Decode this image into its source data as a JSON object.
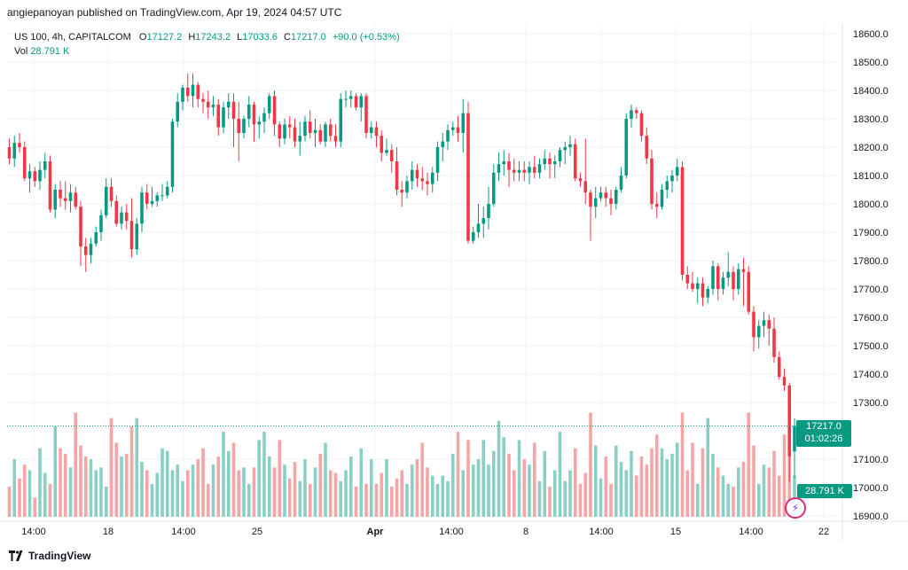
{
  "header": {
    "publisher_line": "angiepanoyan published on TradingView.com, Apr 19, 2024 04:57 UTC"
  },
  "legend": {
    "symbol": "US 100, 4h, CAPITALCOM",
    "o_label": "O",
    "o_value": "17127.2",
    "h_label": "H",
    "h_value": "17243.2",
    "l_label": "L",
    "l_value": "17033.6",
    "c_label": "C",
    "c_value": "17217.0",
    "change": "+90.0 (+0.53%)",
    "vol_label": "Vol",
    "vol_value": "28.791 K"
  },
  "price_tag": {
    "price": "17217.0",
    "countdown": "01:02:26"
  },
  "volume_tag": "28.791 K",
  "footer": {
    "brand": "TradingView"
  },
  "colors": {
    "up": "#089981",
    "down": "#f23645",
    "vol_up": "#89cfc4",
    "vol_down": "#f5a5a5",
    "grid": "#f0f3fa"
  },
  "chart_data": {
    "type": "candlestick",
    "y_ticks": [
      "18600.0",
      "18500.0",
      "18400.0",
      "18300.0",
      "18200.0",
      "18100.0",
      "18000.0",
      "17900.0",
      "17800.0",
      "17700.0",
      "17600.0",
      "17500.0",
      "17400.0",
      "17300.0",
      "17100.0",
      "17000.0",
      "16900.0"
    ],
    "x_ticks": [
      "14:00",
      "18",
      "14:00",
      "25",
      "Apr",
      "14:00",
      "8",
      "14:00",
      "15",
      "14:00",
      "22"
    ],
    "ylim": [
      16900,
      18600
    ],
    "volume_max": 43,
    "candles": [
      [
        18200,
        18230,
        18140,
        18160,
        11
      ],
      [
        18160,
        18240,
        18130,
        18215,
        21
      ],
      [
        18215,
        18250,
        18180,
        18200,
        14
      ],
      [
        18200,
        18220,
        18080,
        18090,
        19
      ],
      [
        18090,
        18140,
        18040,
        18115,
        17
      ],
      [
        18115,
        18130,
        18060,
        18080,
        7
      ],
      [
        18080,
        18150,
        18050,
        18120,
        25
      ],
      [
        18120,
        18180,
        18090,
        18150,
        16
      ],
      [
        18150,
        18170,
        17970,
        17980,
        12
      ],
      [
        17980,
        18070,
        17950,
        18050,
        33
      ],
      [
        18050,
        18080,
        17990,
        18020,
        25
      ],
      [
        18020,
        18080,
        17980,
        18010,
        23
      ],
      [
        18010,
        18070,
        17970,
        18040,
        18
      ],
      [
        18040,
        18060,
        17980,
        17990,
        38
      ],
      [
        17990,
        18010,
        17780,
        17850,
        26
      ],
      [
        17850,
        17880,
        17760,
        17820,
        22
      ],
      [
        17820,
        17880,
        17790,
        17860,
        21
      ],
      [
        17860,
        17920,
        17850,
        17900,
        17
      ],
      [
        17900,
        17980,
        17870,
        17960,
        18
      ],
      [
        17960,
        18090,
        17950,
        18060,
        11
      ],
      [
        18060,
        18090,
        17990,
        18010,
        36
      ],
      [
        18010,
        18030,
        17920,
        17930,
        27
      ],
      [
        17930,
        17990,
        17910,
        17970,
        22
      ],
      [
        17970,
        18000,
        17910,
        17940,
        23
      ],
      [
        17940,
        18020,
        17810,
        17840,
        33
      ],
      [
        17840,
        17950,
        17820,
        17930,
        36
      ],
      [
        17930,
        18060,
        17900,
        18040,
        20
      ],
      [
        18040,
        18070,
        17980,
        18000,
        17
      ],
      [
        18000,
        18060,
        17990,
        18010,
        12
      ],
      [
        18010,
        18040,
        17990,
        18030,
        16
      ],
      [
        18030,
        18070,
        18010,
        18030,
        25
      ],
      [
        18030,
        18080,
        18020,
        18060,
        24
      ],
      [
        18060,
        18300,
        18040,
        18290,
        17
      ],
      [
        18290,
        18390,
        18270,
        18360,
        19
      ],
      [
        18360,
        18420,
        18330,
        18410,
        13
      ],
      [
        18410,
        18460,
        18360,
        18380,
        17
      ],
      [
        18380,
        18460,
        18340,
        18420,
        19
      ],
      [
        18420,
        18430,
        18340,
        18370,
        21
      ],
      [
        18370,
        18390,
        18320,
        18360,
        25
      ],
      [
        18360,
        18400,
        18300,
        18340,
        12
      ],
      [
        18340,
        18380,
        18310,
        18350,
        19
      ],
      [
        18350,
        18370,
        18240,
        18270,
        22
      ],
      [
        18270,
        18360,
        18250,
        18340,
        31
      ],
      [
        18340,
        18390,
        18300,
        18360,
        24
      ],
      [
        18360,
        18390,
        18200,
        18300,
        27
      ],
      [
        18300,
        18360,
        18150,
        18250,
        17
      ],
      [
        18250,
        18310,
        18230,
        18300,
        18
      ],
      [
        18300,
        18380,
        18270,
        18350,
        12
      ],
      [
        18350,
        18360,
        18220,
        18280,
        18
      ],
      [
        18280,
        18310,
        18230,
        18290,
        28
      ],
      [
        18290,
        18340,
        18250,
        18320,
        31
      ],
      [
        18320,
        18390,
        18300,
        18380,
        22
      ],
      [
        18380,
        18400,
        18240,
        18280,
        18
      ],
      [
        18280,
        18290,
        18200,
        18230,
        28
      ],
      [
        18230,
        18300,
        18210,
        18280,
        19
      ],
      [
        18280,
        18310,
        18230,
        18270,
        14
      ],
      [
        18270,
        18300,
        18200,
        18220,
        20
      ],
      [
        18220,
        18290,
        18170,
        18240,
        13
      ],
      [
        18240,
        18310,
        18220,
        18290,
        21
      ],
      [
        18290,
        18330,
        18230,
        18250,
        12
      ],
      [
        18250,
        18300,
        18200,
        18260,
        18
      ],
      [
        18260,
        18280,
        18210,
        18220,
        23
      ],
      [
        18220,
        18290,
        18200,
        18280,
        27
      ],
      [
        18280,
        18300,
        18220,
        18240,
        17
      ],
      [
        18240,
        18280,
        18200,
        18220,
        16
      ],
      [
        18220,
        18390,
        18200,
        18370,
        13
      ],
      [
        18370,
        18400,
        18340,
        18370,
        17
      ],
      [
        18370,
        18400,
        18340,
        18380,
        22
      ],
      [
        18380,
        18390,
        18330,
        18340,
        11
      ],
      [
        18340,
        18390,
        18290,
        18380,
        25
      ],
      [
        18380,
        18390,
        18230,
        18250,
        12
      ],
      [
        18250,
        18290,
        18230,
        18270,
        21
      ],
      [
        18270,
        18290,
        18200,
        18240,
        12
      ],
      [
        18240,
        18260,
        18150,
        18180,
        16
      ],
      [
        18180,
        18230,
        18170,
        18190,
        21
      ],
      [
        18190,
        18210,
        18110,
        18150,
        11
      ],
      [
        18150,
        18200,
        18030,
        18050,
        14
      ],
      [
        18050,
        18080,
        17990,
        18040,
        17
      ],
      [
        18040,
        18100,
        18020,
        18080,
        12
      ],
      [
        18080,
        18150,
        18050,
        18120,
        19
      ],
      [
        18120,
        18140,
        18060,
        18090,
        21
      ],
      [
        18090,
        18130,
        18050,
        18080,
        27
      ],
      [
        18080,
        18110,
        18030,
        18070,
        18
      ],
      [
        18070,
        18130,
        18040,
        18110,
        15
      ],
      [
        18110,
        18220,
        18080,
        18200,
        12
      ],
      [
        18200,
        18250,
        18150,
        18220,
        15
      ],
      [
        18220,
        18280,
        18190,
        18260,
        13
      ],
      [
        18260,
        18290,
        18240,
        18270,
        23
      ],
      [
        18270,
        18310,
        18220,
        18250,
        31
      ],
      [
        18250,
        18370,
        18180,
        18320,
        17
      ],
      [
        18320,
        18360,
        17860,
        17870,
        28
      ],
      [
        17870,
        17920,
        17860,
        17900,
        19
      ],
      [
        17900,
        18000,
        17880,
        17930,
        21
      ],
      [
        17930,
        17990,
        17880,
        17950,
        28
      ],
      [
        17950,
        18060,
        17910,
        18000,
        19
      ],
      [
        18000,
        18140,
        17990,
        18110,
        24
      ],
      [
        18110,
        18180,
        18080,
        18140,
        35
      ],
      [
        18140,
        18190,
        18100,
        18150,
        29
      ],
      [
        18150,
        18180,
        18060,
        18120,
        23
      ],
      [
        18120,
        18160,
        18080,
        18110,
        17
      ],
      [
        18110,
        18150,
        18080,
        18120,
        28
      ],
      [
        18120,
        18150,
        18080,
        18110,
        21
      ],
      [
        18110,
        18150,
        18070,
        18130,
        19
      ],
      [
        18130,
        18170,
        18090,
        18110,
        27
      ],
      [
        18110,
        18160,
        18090,
        18140,
        13
      ],
      [
        18140,
        18190,
        18120,
        18160,
        24
      ],
      [
        18160,
        18180,
        18090,
        18140,
        11
      ],
      [
        18140,
        18170,
        18090,
        18150,
        17
      ],
      [
        18150,
        18200,
        18130,
        18190,
        31
      ],
      [
        18190,
        18220,
        18140,
        18200,
        13
      ],
      [
        18200,
        18240,
        18170,
        18210,
        17
      ],
      [
        18210,
        18230,
        18080,
        18090,
        25
      ],
      [
        18090,
        18110,
        18060,
        18080,
        12
      ],
      [
        18080,
        18230,
        18000,
        18040,
        16
      ],
      [
        18040,
        18050,
        17870,
        17990,
        38
      ],
      [
        17990,
        18060,
        17950,
        18020,
        26
      ],
      [
        18020,
        18060,
        18010,
        18040,
        14
      ],
      [
        18040,
        18060,
        17990,
        18020,
        22
      ],
      [
        18020,
        18050,
        17960,
        18000,
        12
      ],
      [
        18000,
        18060,
        17980,
        18050,
        26
      ],
      [
        18050,
        18130,
        18040,
        18100,
        20
      ],
      [
        18100,
        18320,
        18090,
        18300,
        17
      ],
      [
        18300,
        18350,
        18270,
        18330,
        24
      ],
      [
        18330,
        18340,
        18300,
        18320,
        15
      ],
      [
        18320,
        18330,
        18220,
        18240,
        22
      ],
      [
        18240,
        18270,
        18140,
        18160,
        19
      ],
      [
        18160,
        18190,
        17980,
        18000,
        25
      ],
      [
        18000,
        18040,
        17950,
        17990,
        30
      ],
      [
        17990,
        18070,
        17980,
        18050,
        25
      ],
      [
        18050,
        18100,
        18020,
        18080,
        21
      ],
      [
        18080,
        18120,
        18040,
        18100,
        23
      ],
      [
        18100,
        18160,
        18080,
        18130,
        27
      ],
      [
        18130,
        18150,
        17730,
        17750,
        38
      ],
      [
        17750,
        17780,
        17700,
        17720,
        17
      ],
      [
        17720,
        17760,
        17690,
        17700,
        27
      ],
      [
        17700,
        17740,
        17650,
        17720,
        12
      ],
      [
        17720,
        17740,
        17640,
        17670,
        25
      ],
      [
        17670,
        17710,
        17650,
        17700,
        36
      ],
      [
        17700,
        17800,
        17680,
        17780,
        23
      ],
      [
        17780,
        17790,
        17660,
        17700,
        18
      ],
      [
        17700,
        17760,
        17680,
        17740,
        15
      ],
      [
        17740,
        17830,
        17710,
        17760,
        12
      ],
      [
        17760,
        17780,
        17660,
        17700,
        11
      ],
      [
        17700,
        17790,
        17680,
        17770,
        18
      ],
      [
        17770,
        17810,
        17640,
        17760,
        20
      ],
      [
        17760,
        17780,
        17610,
        17620,
        38
      ],
      [
        17620,
        17640,
        17480,
        17530,
        26
      ],
      [
        17530,
        17590,
        17490,
        17570,
        12
      ],
      [
        17570,
        17620,
        17530,
        17590,
        19
      ],
      [
        17590,
        17610,
        17500,
        17560,
        18
      ],
      [
        17560,
        17600,
        17440,
        17460,
        24
      ],
      [
        17460,
        17480,
        17380,
        17390,
        15
      ],
      [
        17390,
        17420,
        17340,
        17360,
        30
      ],
      [
        17360,
        17370,
        17020,
        17110,
        22
      ],
      [
        17127.2,
        17243.2,
        17033.6,
        17217,
        15
      ]
    ]
  }
}
